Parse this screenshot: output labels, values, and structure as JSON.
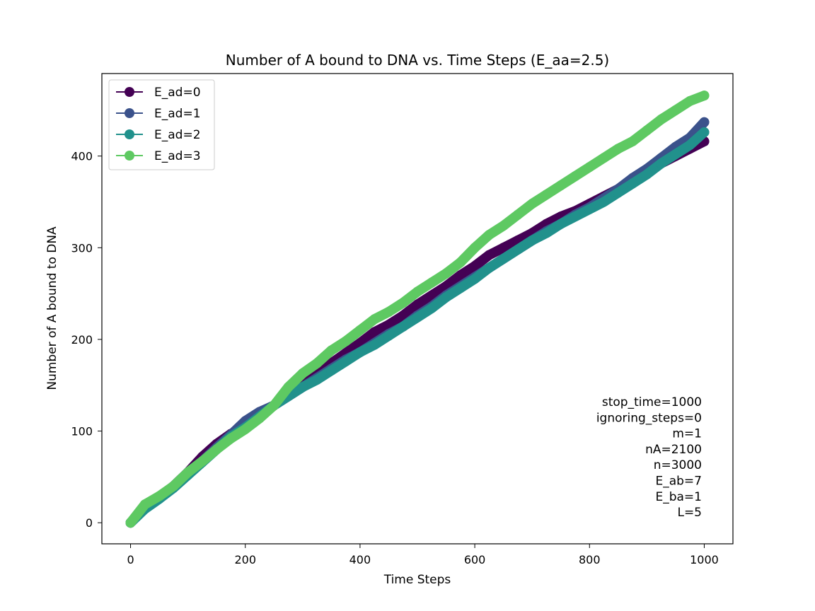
{
  "chart_data": {
    "type": "line",
    "title": "Number of A bound to DNA vs. Time Steps (E_aa=2.5)",
    "xlabel": "Time Steps",
    "ylabel": "Number of A bound to DNA",
    "xlim": [
      -50,
      1050
    ],
    "ylim": [
      -23,
      490
    ],
    "xticks": [
      0,
      200,
      400,
      600,
      800,
      1000
    ],
    "yticks": [
      0,
      100,
      200,
      300,
      400
    ],
    "grid": false,
    "legend_position": "upper-left",
    "series": [
      {
        "name": "E_ad=0",
        "color": "#440154",
        "x": [
          0,
          25,
          50,
          75,
          100,
          125,
          150,
          175,
          200,
          225,
          250,
          275,
          300,
          325,
          350,
          375,
          400,
          425,
          450,
          475,
          500,
          525,
          550,
          575,
          600,
          625,
          650,
          675,
          700,
          725,
          750,
          775,
          800,
          825,
          850,
          875,
          900,
          925,
          950,
          975,
          1000
        ],
        "y": [
          0,
          17,
          28,
          40,
          55,
          72,
          86,
          97,
          103,
          116,
          128,
          140,
          150,
          162,
          174,
          185,
          196,
          208,
          216,
          226,
          238,
          248,
          258,
          270,
          280,
          292,
          300,
          308,
          316,
          326,
          334,
          340,
          348,
          356,
          364,
          372,
          382,
          392,
          400,
          408,
          416
        ]
      },
      {
        "name": "E_ad=1",
        "color": "#3b528b",
        "x": [
          0,
          25,
          50,
          75,
          100,
          125,
          150,
          175,
          200,
          225,
          250,
          275,
          300,
          325,
          350,
          375,
          400,
          425,
          450,
          475,
          500,
          525,
          550,
          575,
          600,
          625,
          650,
          675,
          700,
          725,
          750,
          775,
          800,
          825,
          850,
          875,
          900,
          925,
          950,
          975,
          1000
        ],
        "y": [
          0,
          16,
          27,
          40,
          55,
          67,
          82,
          96,
          111,
          121,
          128,
          138,
          148,
          158,
          168,
          178,
          186,
          196,
          206,
          214,
          226,
          236,
          248,
          258,
          268,
          278,
          288,
          298,
          308,
          318,
          326,
          336,
          344,
          354,
          364,
          376,
          386,
          398,
          410,
          420,
          437
        ]
      },
      {
        "name": "E_ad=2",
        "color": "#21918c",
        "x": [
          0,
          25,
          50,
          75,
          100,
          125,
          150,
          175,
          200,
          225,
          250,
          275,
          300,
          325,
          350,
          375,
          400,
          425,
          450,
          475,
          500,
          525,
          550,
          575,
          600,
          625,
          650,
          675,
          700,
          725,
          750,
          775,
          800,
          825,
          850,
          875,
          900,
          925,
          950,
          975,
          1000
        ],
        "y": [
          0,
          15,
          26,
          38,
          52,
          66,
          80,
          94,
          104,
          116,
          128,
          138,
          148,
          156,
          166,
          176,
          186,
          194,
          204,
          214,
          224,
          234,
          246,
          256,
          266,
          278,
          288,
          298,
          308,
          316,
          326,
          334,
          342,
          350,
          360,
          370,
          380,
          392,
          402,
          412,
          426
        ]
      },
      {
        "name": "E_ad=3",
        "color": "#5ec962",
        "x": [
          0,
          25,
          50,
          75,
          100,
          125,
          150,
          175,
          200,
          225,
          250,
          275,
          300,
          325,
          350,
          375,
          400,
          425,
          450,
          475,
          500,
          525,
          550,
          575,
          600,
          625,
          650,
          675,
          700,
          725,
          750,
          775,
          800,
          825,
          850,
          875,
          900,
          925,
          950,
          975,
          1000
        ],
        "y": [
          0,
          20,
          29,
          40,
          55,
          67,
          80,
          92,
          102,
          114,
          128,
          148,
          163,
          174,
          188,
          198,
          210,
          222,
          230,
          240,
          252,
          262,
          272,
          284,
          300,
          314,
          324,
          336,
          348,
          358,
          368,
          378,
          388,
          398,
          408,
          416,
          428,
          440,
          450,
          460,
          466
        ]
      }
    ]
  },
  "annotation_lines": [
    "stop_time=1000",
    "ignoring_steps=0",
    "m=1",
    "nA=2100",
    "n=3000",
    "E_ab=7",
    "E_ba=1",
    "L=5"
  ]
}
